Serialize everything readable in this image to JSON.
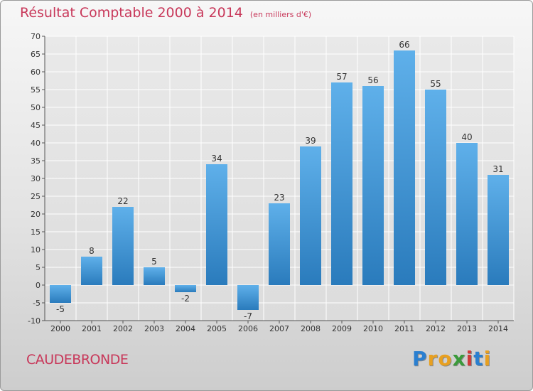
{
  "title": "Résultat Comptable 2000 à 2014",
  "subtitle": "(en milliers d'€)",
  "commune": "CAUDEBRONDE",
  "logo": {
    "letters": [
      "P",
      "r",
      "o",
      "x",
      "i",
      "t",
      "i"
    ],
    "colors": [
      "#2a7fd0",
      "#e8a020",
      "#e8a020",
      "#3a9a3a",
      "#d03a3a",
      "#2a7fd0",
      "#e8a020"
    ]
  },
  "colors": {
    "bar_top": "#5fb0ea",
    "bar_bottom": "#2a7bbc",
    "grid": "#ffffff",
    "title": "#c8385a"
  },
  "chart_data": {
    "type": "bar",
    "title": "Résultat Comptable 2000 à 2014",
    "xlabel": "",
    "ylabel": "",
    "ylim": [
      -10,
      70
    ],
    "yticks": [
      -10,
      -5,
      0,
      5,
      10,
      15,
      20,
      25,
      30,
      35,
      40,
      45,
      50,
      55,
      60,
      65,
      70
    ],
    "categories": [
      "2000",
      "2001",
      "2002",
      "2003",
      "2004",
      "2005",
      "2006",
      "2007",
      "2008",
      "2009",
      "2010",
      "2011",
      "2012",
      "2013",
      "2014"
    ],
    "values": [
      -5,
      8,
      22,
      5,
      -2,
      34,
      -7,
      23,
      39,
      57,
      56,
      66,
      55,
      40,
      31
    ],
    "grid": true
  }
}
